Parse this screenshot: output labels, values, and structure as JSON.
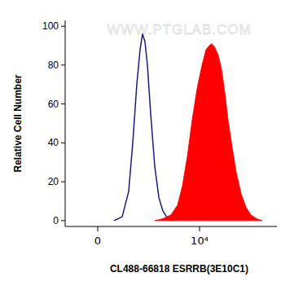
{
  "chart_data": {
    "type": "area",
    "x_label": "CL488-66818 ESRRB(3E10C1)",
    "y_label": "Relative Cell Number",
    "annotations": [
      "WWW.PTGLAB.COM"
    ],
    "xlim": [
      -3200,
      17600
    ],
    "ylim": [
      -3,
      103
    ],
    "xticks": [
      0,
      {
        "value": 10000,
        "label": "10⁴"
      }
    ],
    "yticks": [
      0,
      20,
      40,
      60,
      80,
      100
    ],
    "grid": false,
    "series": [
      {
        "type": "line",
        "color": "#1a1a80",
        "x": [
          1600,
          2400,
          3040,
          3440,
          3840,
          4160,
          4400,
          4640,
          4880,
          5200,
          5600,
          6000,
          6400,
          6880,
          7360
        ],
        "values": [
          0,
          2,
          15,
          40,
          70,
          88,
          96,
          92,
          80,
          55,
          28,
          12,
          5,
          1,
          0
        ]
      },
      {
        "type": "area",
        "color": "#ff0000",
        "x": [
          5600,
          6400,
          7200,
          7840,
          8320,
          8800,
          9280,
          9760,
          10240,
          10640,
          10960,
          11200,
          11520,
          11840,
          12160,
          12480,
          12800,
          13200,
          13600,
          14080,
          14560,
          15040,
          15600,
          16160
        ],
        "values": [
          0,
          1,
          3,
          8,
          18,
          33,
          52,
          68,
          80,
          88,
          90,
          91,
          89,
          85,
          78,
          66,
          52,
          38,
          25,
          14,
          7,
          3,
          1,
          0
        ]
      }
    ]
  }
}
